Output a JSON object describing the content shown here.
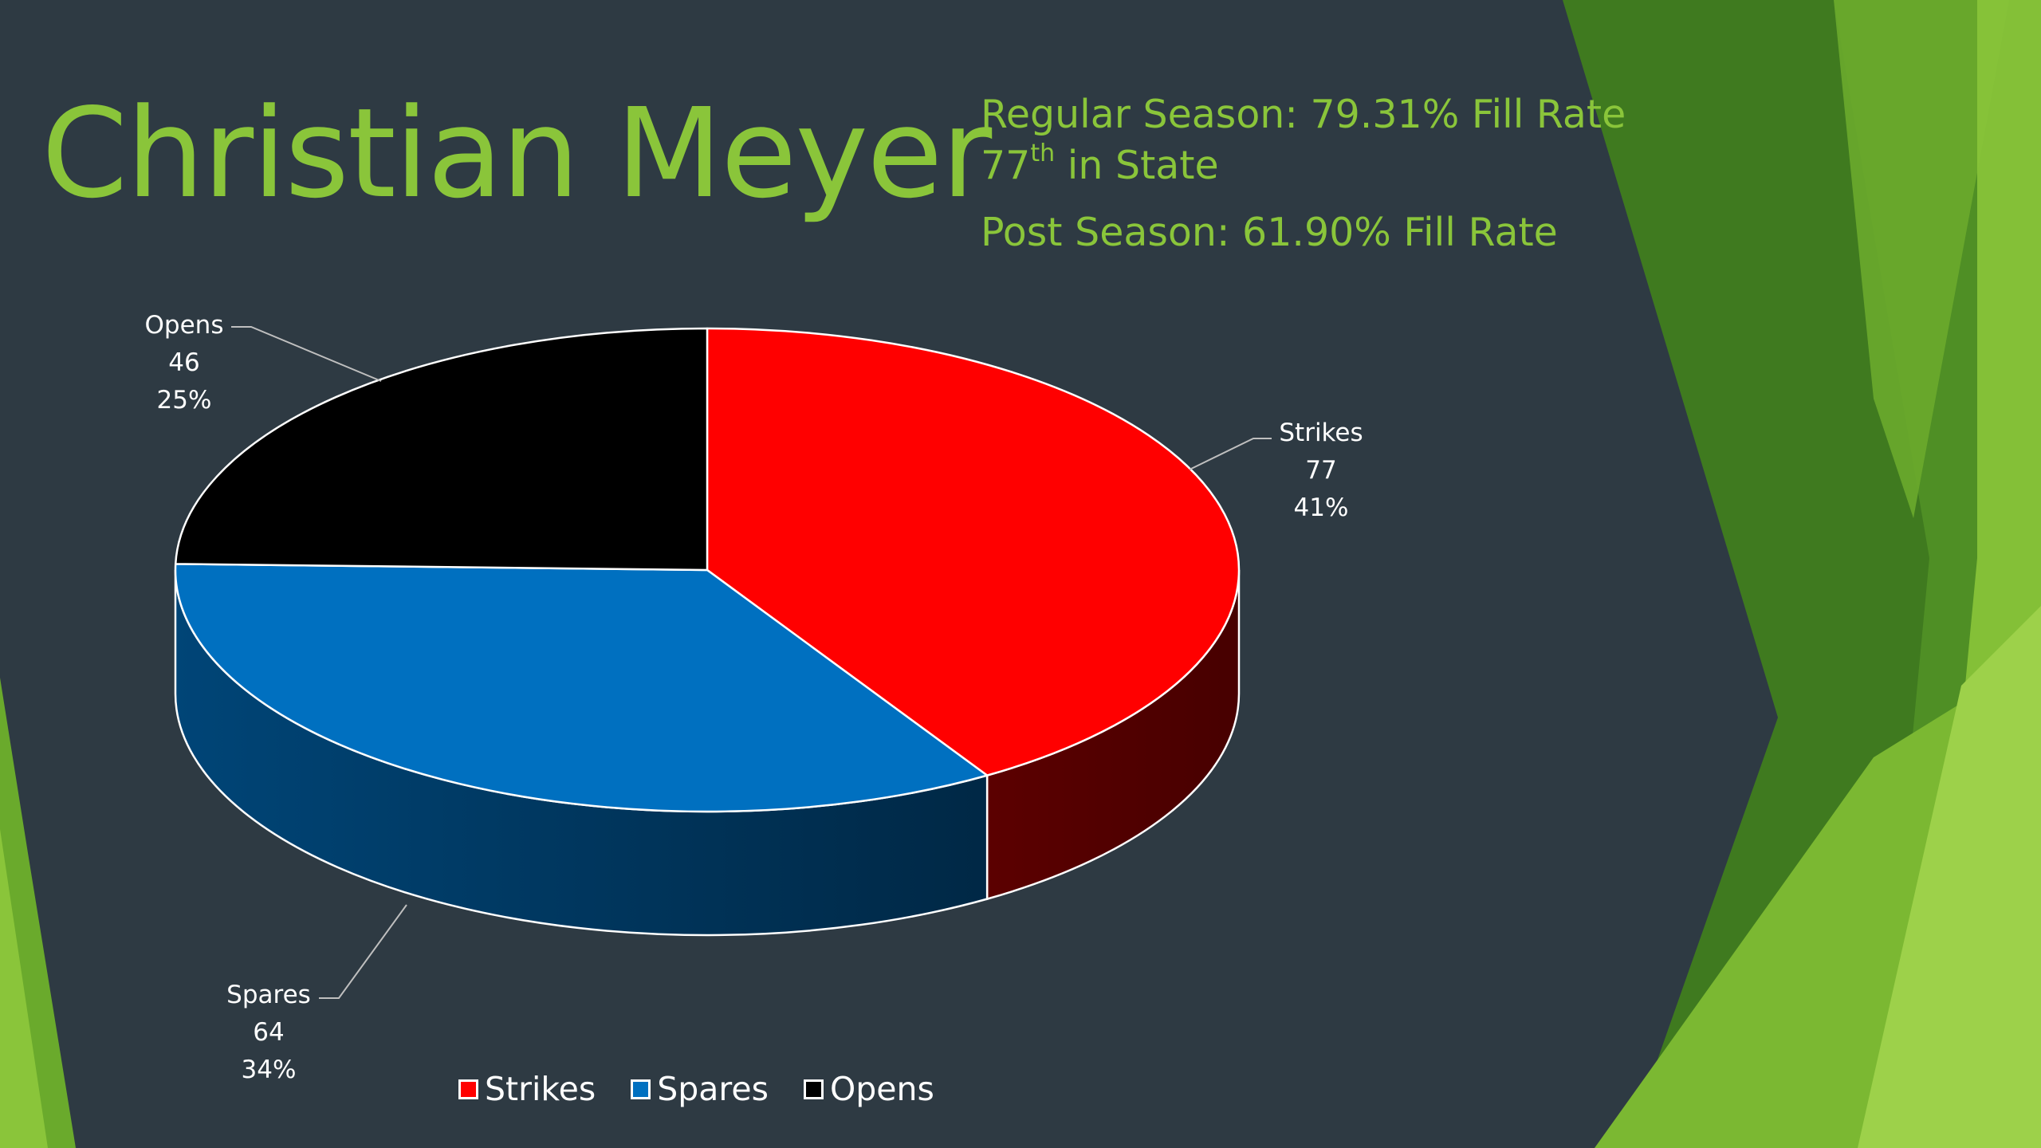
{
  "slide": {
    "title": "Christian Meyer",
    "stats": {
      "regular_season": "Regular Season: 79.31% Fill Rate",
      "rank_number": "77",
      "rank_suffix": "th",
      "rank_rest": " in State",
      "post_season": "Post Season: 61.90% Fill Rate"
    }
  },
  "colors": {
    "background": "#2e3a43",
    "title": "#8ac53a",
    "accent_greens": [
      "#3f7a1f",
      "#4f8f25",
      "#6aaa2c",
      "#8ac53a",
      "#9dd14a"
    ]
  },
  "chart_data": {
    "type": "pie",
    "style": "3d",
    "categories": [
      "Strikes",
      "Spares",
      "Opens"
    ],
    "values": [
      77,
      64,
      46
    ],
    "percentages": [
      "41%",
      "34%",
      "25%"
    ],
    "colors": [
      "#ff0000",
      "#0070c0",
      "#000000"
    ],
    "legend": {
      "position": "bottom",
      "entries": [
        "Strikes",
        "Spares",
        "Opens"
      ]
    }
  }
}
